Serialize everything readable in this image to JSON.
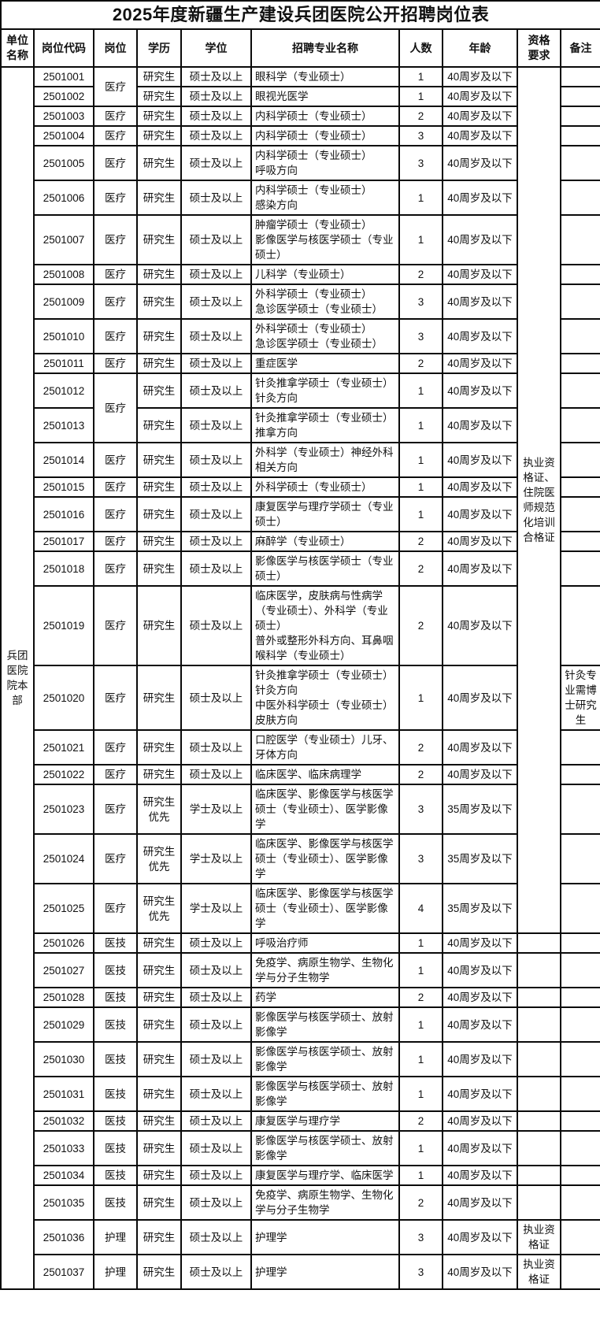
{
  "title": "2025年度新疆生产建设兵团医院公开招聘岗位表",
  "columns": [
    "单位\n名称",
    "岗位代码",
    "岗位",
    "学历",
    "学位",
    "招聘专业名称",
    "人数",
    "年龄",
    "资格\n要求",
    "备注"
  ],
  "unit": {
    "name": "兵团医院院本部"
  },
  "rows": [
    {
      "code": "2501001",
      "post": "医疗",
      "post_rowspan": 2,
      "edu": "研究生",
      "degree": "硕士及以上",
      "major": "眼科学（专业硕士）",
      "count": "1",
      "age": "40周岁及以下",
      "qual": "执业资格证、住院医师规范化培训合格证",
      "qual_rowspan": 25,
      "remark": ""
    },
    {
      "code": "2501002",
      "post": null,
      "edu": "研究生",
      "degree": "硕士及以上",
      "major": "眼视光医学",
      "count": "1",
      "age": "40周岁及以下",
      "qual": null,
      "remark": ""
    },
    {
      "code": "2501003",
      "post": "医疗",
      "edu": "研究生",
      "degree": "硕士及以上",
      "major": "内科学硕士（专业硕士）",
      "count": "2",
      "age": "40周岁及以下",
      "qual": null,
      "remark": ""
    },
    {
      "code": "2501004",
      "post": "医疗",
      "edu": "研究生",
      "degree": "硕士及以上",
      "major": "内科学硕士（专业硕士）",
      "count": "3",
      "age": "40周岁及以下",
      "qual": null,
      "remark": ""
    },
    {
      "code": "2501005",
      "post": "医疗",
      "edu": "研究生",
      "degree": "硕士及以上",
      "major": "内科学硕士（专业硕士）\n呼吸方向",
      "count": "3",
      "age": "40周岁及以下",
      "qual": null,
      "remark": ""
    },
    {
      "code": "2501006",
      "post": "医疗",
      "edu": "研究生",
      "degree": "硕士及以上",
      "major": "内科学硕士（专业硕士）\n感染方向",
      "count": "1",
      "age": "40周岁及以下",
      "qual": null,
      "remark": ""
    },
    {
      "code": "2501007",
      "post": "医疗",
      "edu": "研究生",
      "degree": "硕士及以上",
      "major": "肿瘤学硕士（专业硕士）\n影像医学与核医学硕士（专业硕士）",
      "count": "1",
      "age": "40周岁及以下",
      "qual": null,
      "remark": ""
    },
    {
      "code": "2501008",
      "post": "医疗",
      "edu": "研究生",
      "degree": "硕士及以上",
      "major": "儿科学（专业硕士）",
      "count": "2",
      "age": "40周岁及以下",
      "qual": null,
      "remark": ""
    },
    {
      "code": "2501009",
      "post": "医疗",
      "edu": "研究生",
      "degree": "硕士及以上",
      "major": "外科学硕士（专业硕士）\n急诊医学硕士（专业硕士）",
      "count": "3",
      "age": "40周岁及以下",
      "qual": null,
      "remark": ""
    },
    {
      "code": "2501010",
      "post": "医疗",
      "edu": "研究生",
      "degree": "硕士及以上",
      "major": "外科学硕士（专业硕士）\n急诊医学硕士（专业硕士）",
      "count": "3",
      "age": "40周岁及以下",
      "qual": null,
      "remark": ""
    },
    {
      "code": "2501011",
      "post": "医疗",
      "edu": "研究生",
      "degree": "硕士及以上",
      "major": "重症医学",
      "count": "2",
      "age": "40周岁及以下",
      "qual": null,
      "remark": ""
    },
    {
      "code": "2501012",
      "post": "医疗",
      "post_rowspan": 2,
      "edu": "研究生",
      "degree": "硕士及以上",
      "major": "针灸推拿学硕士（专业硕士）针灸方向",
      "count": "1",
      "age": "40周岁及以下",
      "qual": null,
      "remark": ""
    },
    {
      "code": "2501013",
      "post": null,
      "edu": "研究生",
      "degree": "硕士及以上",
      "major": "针灸推拿学硕士（专业硕士）推拿方向",
      "count": "1",
      "age": "40周岁及以下",
      "qual": null,
      "remark": ""
    },
    {
      "code": "2501014",
      "post": "医疗",
      "edu": "研究生",
      "degree": "硕士及以上",
      "major": "外科学（专业硕士）神经外科相关方向",
      "count": "1",
      "age": "40周岁及以下",
      "qual": null,
      "remark": ""
    },
    {
      "code": "2501015",
      "post": "医疗",
      "edu": "研究生",
      "degree": "硕士及以上",
      "major": "外科学硕士（专业硕士）",
      "count": "1",
      "age": "40周岁及以下",
      "qual": null,
      "remark": ""
    },
    {
      "code": "2501016",
      "post": "医疗",
      "edu": "研究生",
      "degree": "硕士及以上",
      "major": "康复医学与理疗学硕士（专业硕士）",
      "count": "1",
      "age": "40周岁及以下",
      "qual": null,
      "remark": ""
    },
    {
      "code": "2501017",
      "post": "医疗",
      "edu": "研究生",
      "degree": "硕士及以上",
      "major": "麻醉学（专业硕士）",
      "count": "2",
      "age": "40周岁及以下",
      "qual": null,
      "remark": ""
    },
    {
      "code": "2501018",
      "post": "医疗",
      "edu": "研究生",
      "degree": "硕士及以上",
      "major": "影像医学与核医学硕士（专业硕士）",
      "count": "2",
      "age": "40周岁及以下",
      "qual": null,
      "remark": ""
    },
    {
      "code": "2501019",
      "post": "医疗",
      "edu": "研究生",
      "degree": "硕士及以上",
      "major": "临床医学，皮肤病与性病学（专业硕士）、外科学（专业硕士）\n普外或整形外科方向、耳鼻咽喉科学（专业硕士）",
      "count": "2",
      "age": "40周岁及以下",
      "qual": null,
      "remark": ""
    },
    {
      "code": "2501020",
      "post": "医疗",
      "edu": "研究生",
      "degree": "硕士及以上",
      "major": "针灸推拿学硕士（专业硕士）针灸方向\n中医外科学硕士（专业硕士）皮肤方向",
      "count": "1",
      "age": "40周岁及以下",
      "qual": null,
      "remark": "针灸专业需博士研究生"
    },
    {
      "code": "2501021",
      "post": "医疗",
      "edu": "研究生",
      "degree": "硕士及以上",
      "major": "口腔医学（专业硕士）儿牙、牙体方向",
      "count": "2",
      "age": "40周岁及以下",
      "qual": null,
      "remark": ""
    },
    {
      "code": "2501022",
      "post": "医疗",
      "edu": "研究生",
      "degree": "硕士及以上",
      "major": "临床医学、临床病理学",
      "count": "2",
      "age": "40周岁及以下",
      "qual": null,
      "remark": ""
    },
    {
      "code": "2501023",
      "post": "医疗",
      "edu": "研究生\n优先",
      "degree": "学士及以上",
      "major": "临床医学、影像医学与核医学硕士（专业硕士）、医学影像学",
      "count": "3",
      "age": "35周岁及以下",
      "qual": null,
      "remark": ""
    },
    {
      "code": "2501024",
      "post": "医疗",
      "edu": "研究生\n优先",
      "degree": "学士及以上",
      "major": "临床医学、影像医学与核医学硕士（专业硕士）、医学影像学",
      "count": "3",
      "age": "35周岁及以下",
      "qual": null,
      "remark": ""
    },
    {
      "code": "2501025",
      "post": "医疗",
      "edu": "研究生\n优先",
      "degree": "学士及以上",
      "major": "临床医学、影像医学与核医学硕士（专业硕士）、医学影像学",
      "count": "4",
      "age": "35周岁及以下",
      "qual": null,
      "remark": ""
    },
    {
      "code": "2501026",
      "post": "医技",
      "edu": "研究生",
      "degree": "硕士及以上",
      "major": "呼吸治疗师",
      "count": "1",
      "age": "40周岁及以下",
      "qual": "",
      "remark": ""
    },
    {
      "code": "2501027",
      "post": "医技",
      "edu": "研究生",
      "degree": "硕士及以上",
      "major": "免疫学、病原生物学、生物化学与分子生物学",
      "count": "1",
      "age": "40周岁及以下",
      "qual": "",
      "remark": ""
    },
    {
      "code": "2501028",
      "post": "医技",
      "edu": "研究生",
      "degree": "硕士及以上",
      "major": "药学",
      "count": "2",
      "age": "40周岁及以下",
      "qual": "",
      "remark": ""
    },
    {
      "code": "2501029",
      "post": "医技",
      "edu": "研究生",
      "degree": "硕士及以上",
      "major": "影像医学与核医学硕士、放射影像学",
      "count": "1",
      "age": "40周岁及以下",
      "qual": "",
      "remark": ""
    },
    {
      "code": "2501030",
      "post": "医技",
      "edu": "研究生",
      "degree": "硕士及以上",
      "major": "影像医学与核医学硕士、放射影像学",
      "count": "1",
      "age": "40周岁及以下",
      "qual": "",
      "remark": ""
    },
    {
      "code": "2501031",
      "post": "医技",
      "edu": "研究生",
      "degree": "硕士及以上",
      "major": "影像医学与核医学硕士、放射影像学",
      "count": "1",
      "age": "40周岁及以下",
      "qual": "",
      "remark": ""
    },
    {
      "code": "2501032",
      "post": "医技",
      "edu": "研究生",
      "degree": "硕士及以上",
      "major": "康复医学与理疗学",
      "count": "2",
      "age": "40周岁及以下",
      "qual": "",
      "remark": ""
    },
    {
      "code": "2501033",
      "post": "医技",
      "edu": "研究生",
      "degree": "硕士及以上",
      "major": "影像医学与核医学硕士、放射影像学",
      "count": "1",
      "age": "40周岁及以下",
      "qual": "",
      "remark": ""
    },
    {
      "code": "2501034",
      "post": "医技",
      "edu": "研究生",
      "degree": "硕士及以上",
      "major": "康复医学与理疗学、临床医学",
      "count": "1",
      "age": "40周岁及以下",
      "qual": "",
      "remark": ""
    },
    {
      "code": "2501035",
      "post": "医技",
      "edu": "研究生",
      "degree": "硕士及以上",
      "major": "免疫学、病原生物学、生物化学与分子生物学",
      "count": "2",
      "age": "40周岁及以下",
      "qual": "",
      "remark": ""
    },
    {
      "code": "2501036",
      "post": "护理",
      "edu": "研究生",
      "degree": "硕士及以上",
      "major": "护理学",
      "count": "3",
      "age": "40周岁及以下",
      "qual": "执业资格证",
      "remark": ""
    },
    {
      "code": "2501037",
      "post": "护理",
      "edu": "研究生",
      "degree": "硕士及以上",
      "major": "护理学",
      "count": "3",
      "age": "40周岁及以下",
      "qual": "执业资格证",
      "remark": ""
    }
  ]
}
